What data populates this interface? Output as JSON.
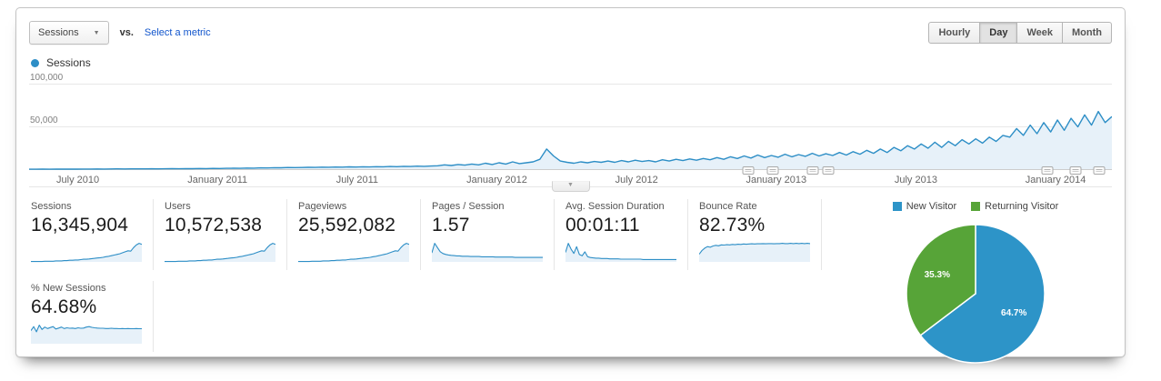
{
  "toolbar": {
    "metric_selector": "Sessions",
    "vs_label": "vs.",
    "select_metric_label": "Select a metric",
    "granularity": [
      "Hourly",
      "Day",
      "Week",
      "Month"
    ],
    "granularity_selected": "Day"
  },
  "legend": {
    "series": "Sessions"
  },
  "colors": {
    "accent_blue": "#2d8ec6",
    "area_fill": "#e7f1f9",
    "grid": "#e8e8e8",
    "axis": "#cccccc",
    "pie_blue": "#2d94c8",
    "pie_green": "#57a438",
    "link": "#1155cc"
  },
  "chart_data": [
    {
      "type": "line",
      "title": "Sessions over time (daily)",
      "ylabel": "Sessions",
      "ylim": [
        0,
        100000
      ],
      "grid": true,
      "values_unit": "thousands",
      "yticks": [
        {
          "value": 50000,
          "label": "50,000"
        },
        {
          "value": 100000,
          "label": "100,000"
        }
      ],
      "xticks": [
        {
          "label": "July 2010",
          "pos": 0.045
        },
        {
          "label": "January 2011",
          "pos": 0.174
        },
        {
          "label": "July 2011",
          "pos": 0.303
        },
        {
          "label": "January 2012",
          "pos": 0.432
        },
        {
          "label": "July 2012",
          "pos": 0.561
        },
        {
          "label": "January 2013",
          "pos": 0.69
        },
        {
          "label": "July 2013",
          "pos": 0.819
        },
        {
          "label": "January 2014",
          "pos": 0.948
        }
      ],
      "annotation_markers": [
        0.664,
        0.687,
        0.724,
        0.738,
        0.94,
        0.966,
        0.988
      ],
      "values": [
        0.4,
        0.4,
        0.5,
        0.4,
        0.5,
        0.5,
        0.6,
        0.5,
        0.6,
        0.6,
        0.7,
        0.6,
        0.7,
        0.8,
        0.7,
        0.8,
        0.9,
        0.8,
        1.0,
        0.9,
        1.0,
        1.1,
        1.0,
        1.2,
        1.1,
        1.3,
        1.2,
        1.4,
        1.3,
        1.5,
        1.6,
        1.5,
        1.8,
        1.7,
        2.0,
        1.9,
        2.2,
        2.1,
        2.4,
        2.3,
        2.5,
        2.7,
        2.6,
        2.9,
        2.8,
        3.0,
        2.9,
        3.2,
        3.0,
        3.3,
        3.1,
        3.4,
        3.3,
        3.6,
        3.4,
        3.8,
        3.6,
        4.0,
        3.8,
        4.2,
        4.5,
        5.5,
        4.8,
        6.0,
        5.2,
        6.5,
        5.5,
        7.5,
        6.0,
        8.0,
        6.5,
        9.0,
        7.0,
        8.0,
        9.0,
        12.0,
        24.0,
        16.0,
        10.0,
        8.5,
        7.5,
        9.0,
        8.0,
        9.5,
        8.5,
        10.0,
        8.5,
        10.5,
        9.0,
        11.0,
        9.5,
        10.5,
        9.0,
        11.5,
        10.0,
        12.0,
        10.5,
        12.5,
        11.0,
        13.0,
        11.5,
        14.0,
        12.0,
        15.0,
        13.0,
        16.0,
        13.5,
        17.0,
        14.0,
        16.5,
        14.5,
        18.0,
        15.0,
        17.5,
        15.5,
        19.0,
        16.0,
        18.5,
        16.5,
        20.0,
        17.0,
        21.0,
        18.0,
        22.5,
        19.0,
        24.0,
        20.0,
        26.0,
        22.0,
        28.0,
        24.0,
        30.0,
        25.0,
        32.0,
        26.0,
        33.0,
        28.0,
        35.0,
        30.0,
        36.0,
        31.0,
        38.0,
        33.0,
        40.0,
        38.0,
        48.0,
        40.0,
        52.0,
        42.0,
        55.0,
        44.0,
        58.0,
        46.0,
        60.0,
        50.0,
        64.0,
        52.0,
        68.0,
        55.0,
        62.0
      ]
    },
    {
      "type": "pie",
      "title": "New vs Returning visitors",
      "legend_position": "top",
      "slices": [
        {
          "label": "New Visitor",
          "value": 64.7,
          "pct_label": "64.7%",
          "color": "#2d94c8"
        },
        {
          "label": "Returning Visitor",
          "value": 35.3,
          "pct_label": "35.3%",
          "color": "#57a438"
        }
      ]
    },
    {
      "type": "sparklines",
      "series": {
        "growth": [
          1,
          1,
          1,
          1,
          1,
          2,
          2,
          2,
          2,
          3,
          3,
          3,
          4,
          4,
          5,
          5,
          6,
          6,
          7,
          8,
          8,
          9,
          10,
          11,
          12,
          13,
          14,
          16,
          17,
          19,
          21,
          23,
          25,
          28,
          31,
          34,
          33,
          44,
          52,
          57,
          54
        ],
        "pages": [
          30,
          62,
          48,
          34,
          28,
          25,
          23,
          22,
          21,
          20,
          20,
          19,
          19,
          19,
          18,
          18,
          18,
          18,
          17,
          17,
          17,
          17,
          17,
          16,
          16,
          16,
          16,
          16,
          16,
          16,
          15,
          15,
          15,
          15,
          15,
          15,
          15,
          15,
          15,
          15,
          15
        ],
        "duration": [
          28,
          55,
          38,
          25,
          45,
          22,
          18,
          30,
          15,
          13,
          12,
          11,
          11,
          10,
          10,
          10,
          9,
          9,
          9,
          9,
          8,
          8,
          8,
          8,
          8,
          8,
          8,
          8,
          7,
          7,
          7,
          7,
          7,
          7,
          7,
          7,
          7,
          7,
          7,
          7,
          7
        ],
        "bounce": [
          35,
          52,
          63,
          70,
          67,
          73,
          76,
          74,
          78,
          77,
          79,
          78,
          80,
          79,
          81,
          80,
          82,
          81,
          82,
          83,
          82,
          83,
          83,
          84,
          83,
          84,
          84,
          83,
          84,
          84,
          85,
          84,
          84,
          85,
          84,
          85,
          84,
          85,
          84,
          85,
          84
        ],
        "newsessions": [
          55,
          72,
          50,
          78,
          60,
          70,
          64,
          68,
          72,
          62,
          66,
          70,
          64,
          67,
          65,
          66,
          64,
          67,
          65,
          66,
          70,
          72,
          69,
          67,
          66,
          65,
          65,
          64,
          64,
          65,
          64,
          64,
          63,
          64,
          63,
          64,
          63,
          63,
          64,
          63,
          63
        ]
      }
    }
  ],
  "metrics": [
    {
      "label": "Sessions",
      "value": "16,345,904",
      "spark": "growth"
    },
    {
      "label": "Users",
      "value": "10,572,538",
      "spark": "growth"
    },
    {
      "label": "Pageviews",
      "value": "25,592,082",
      "spark": "growth"
    },
    {
      "label": "Pages / Session",
      "value": "1.57",
      "spark": "pages"
    },
    {
      "label": "Avg. Session Duration",
      "value": "00:01:11",
      "spark": "duration"
    },
    {
      "label": "Bounce Rate",
      "value": "82.73%",
      "spark": "bounce"
    },
    {
      "label": "% New Sessions",
      "value": "64.68%",
      "spark": "newsessions"
    }
  ]
}
